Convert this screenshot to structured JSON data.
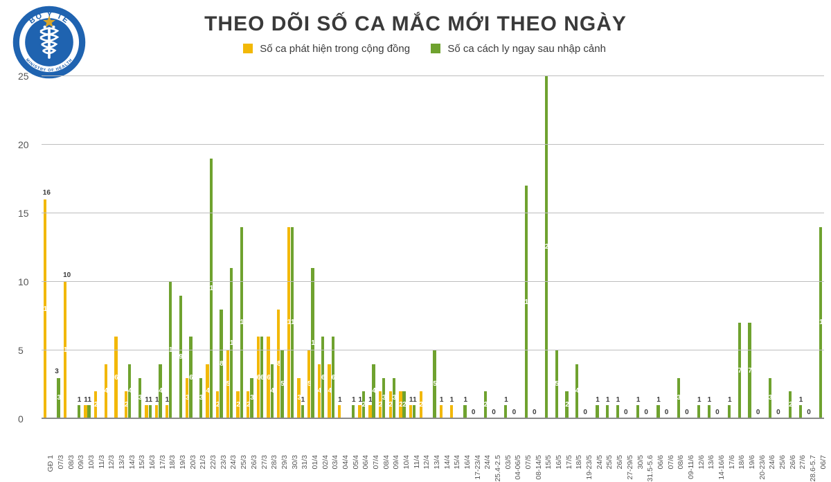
{
  "title": {
    "text": "THEO DÕI SỐ CA MẮC MỚI THEO NGÀY",
    "fontsize": 30,
    "color": "#3a3a3a"
  },
  "legend": {
    "series": [
      {
        "label": "Số ca phát hiện trong cộng đồng",
        "color": "#f2b807"
      },
      {
        "label": "Số ca cách ly ngay sau nhập cảnh",
        "color": "#6fa22f"
      }
    ]
  },
  "logo": {
    "outer_text_top": "BỘ Y TẾ",
    "outer_text_bottom": "MINISTRY OF HEALTH",
    "ring_color": "#1f63b0",
    "inner_color": "#1f63b0",
    "star_color": "#d7a52a"
  },
  "chart": {
    "type": "stacked-bar",
    "y": {
      "min": 0,
      "max": 26,
      "ticks": [
        0,
        5,
        10,
        15,
        20,
        25
      ],
      "grid_color": "#bdbdbd",
      "tick_fontsize": 14
    },
    "bar": {
      "gap_ratio": 0.35,
      "half_gap_ratio": 0.06
    },
    "colors": {
      "community": "#f2b807",
      "imported": "#6fa22f"
    },
    "label_zero_color": "#3a3a3a",
    "xlabel_fontsize": 10.5,
    "data": [
      {
        "x": "GĐ 1",
        "community": 16,
        "imported": 0,
        "top": "16"
      },
      {
        "x": "07/3",
        "community": 0,
        "imported": 3,
        "top": "3"
      },
      {
        "x": "08/3",
        "community": 10,
        "imported": 0,
        "top": "10"
      },
      {
        "x": "09/3",
        "community": 0,
        "imported": 1,
        "top": ""
      },
      {
        "x": "10/3",
        "community": 1,
        "imported": 1,
        "top": ""
      },
      {
        "x": "11/3",
        "community": 2,
        "imported": 0,
        "top": ""
      },
      {
        "x": "12/3",
        "community": 4,
        "imported": 0,
        "top": ""
      },
      {
        "x": "13/3",
        "community": 6,
        "imported": 0,
        "top": ""
      },
      {
        "x": "14/3",
        "community": 2,
        "imported": 4,
        "top": ""
      },
      {
        "x": "15/3",
        "community": 0,
        "imported": 3,
        "top": ""
      },
      {
        "x": "16/3",
        "community": 1,
        "imported": 1,
        "top": ""
      },
      {
        "x": "17/3",
        "community": 1,
        "imported": 4,
        "top": ""
      },
      {
        "x": "18/3",
        "community": 1,
        "imported": 10,
        "top": ""
      },
      {
        "x": "19/3",
        "community": 0,
        "imported": 9,
        "top": ""
      },
      {
        "x": "20/3",
        "community": 3,
        "imported": 6,
        "top": ""
      },
      {
        "x": "21/3",
        "community": 0,
        "imported": 3,
        "top": ""
      },
      {
        "x": "22/3",
        "community": 4,
        "imported": 19,
        "top": ""
      },
      {
        "x": "23/3",
        "community": 2,
        "imported": 8,
        "top": ""
      },
      {
        "x": "24/3",
        "community": 5,
        "imported": 11,
        "top": ""
      },
      {
        "x": "25/3",
        "community": 2,
        "imported": 14,
        "top": ""
      },
      {
        "x": "26/3",
        "community": 2,
        "imported": 3,
        "top": ""
      },
      {
        "x": "27/3",
        "community": 6,
        "imported": 6,
        "top": ""
      },
      {
        "x": "28/3",
        "community": 6,
        "imported": 4,
        "top": ""
      },
      {
        "x": "29/3",
        "community": 8,
        "imported": 5,
        "top": ""
      },
      {
        "x": "30/3",
        "community": 14,
        "imported": 14,
        "top": ""
      },
      {
        "x": "31/3",
        "community": 3,
        "imported": 1,
        "top": ""
      },
      {
        "x": "01/4",
        "community": 5,
        "imported": 11,
        "top": ""
      },
      {
        "x": "02/4",
        "community": 4,
        "imported": 6,
        "top": ""
      },
      {
        "x": "03/4",
        "community": 4,
        "imported": 6,
        "top": ""
      },
      {
        "x": "04/4",
        "community": 1,
        "imported": 0,
        "top": ""
      },
      {
        "x": "05/4",
        "community": 0,
        "imported": 1,
        "top": ""
      },
      {
        "x": "06/4",
        "community": 1,
        "imported": 2,
        "top": ""
      },
      {
        "x": "07/4",
        "community": 1,
        "imported": 4,
        "top": ""
      },
      {
        "x": "08/4",
        "community": 2,
        "imported": 3,
        "top": ""
      },
      {
        "x": "09/4",
        "community": 2,
        "imported": 3,
        "top": ""
      },
      {
        "x": "10/4",
        "community": 2,
        "imported": 2,
        "top": ""
      },
      {
        "x": "11/4",
        "community": 1,
        "imported": 1,
        "top": ""
      },
      {
        "x": "12/4",
        "community": 2,
        "imported": 0,
        "top": ""
      },
      {
        "x": "13/4",
        "community": 0,
        "imported": 5,
        "top": ""
      },
      {
        "x": "14/4",
        "community": 1,
        "imported": 0,
        "top": ""
      },
      {
        "x": "15/4",
        "community": 1,
        "imported": 0,
        "top": ""
      },
      {
        "x": "16/4",
        "community": 0,
        "imported": 1,
        "top": ""
      },
      {
        "x": "17-23/4",
        "community": 0,
        "imported": 0,
        "top": "0"
      },
      {
        "x": "24/4",
        "community": 0,
        "imported": 2,
        "top": ""
      },
      {
        "x": "25.4-2.5",
        "community": 0,
        "imported": 0,
        "top": "0"
      },
      {
        "x": "03/5",
        "community": 0,
        "imported": 1,
        "top": ""
      },
      {
        "x": "04-06/5",
        "community": 0,
        "imported": 0,
        "top": "0"
      },
      {
        "x": "07/5",
        "community": 0,
        "imported": 17,
        "top": ""
      },
      {
        "x": "08-14/5",
        "community": 0,
        "imported": 0,
        "top": "0"
      },
      {
        "x": "15/5",
        "community": 0,
        "imported": 25,
        "top": ""
      },
      {
        "x": "16/5",
        "community": 0,
        "imported": 5,
        "top": ""
      },
      {
        "x": "17/5",
        "community": 0,
        "imported": 2,
        "top": ""
      },
      {
        "x": "18/5",
        "community": 0,
        "imported": 4,
        "top": ""
      },
      {
        "x": "19-23/5",
        "community": 0,
        "imported": 0,
        "top": "0"
      },
      {
        "x": "24/5",
        "community": 0,
        "imported": 1,
        "top": ""
      },
      {
        "x": "25/5",
        "community": 0,
        "imported": 1,
        "top": ""
      },
      {
        "x": "26/5",
        "community": 0,
        "imported": 1,
        "top": ""
      },
      {
        "x": "27-29/5",
        "community": 0,
        "imported": 0,
        "top": "0"
      },
      {
        "x": "30/5",
        "community": 0,
        "imported": 1,
        "top": ""
      },
      {
        "x": "31.5-5.6",
        "community": 0,
        "imported": 0,
        "top": "0"
      },
      {
        "x": "06/6",
        "community": 0,
        "imported": 1,
        "top": ""
      },
      {
        "x": "07/6",
        "community": 0,
        "imported": 0,
        "top": "0"
      },
      {
        "x": "08/6",
        "community": 0,
        "imported": 3,
        "top": ""
      },
      {
        "x": "09-11/6",
        "community": 0,
        "imported": 0,
        "top": "0"
      },
      {
        "x": "12/6",
        "community": 0,
        "imported": 1,
        "top": ""
      },
      {
        "x": "13/6",
        "community": 0,
        "imported": 1,
        "top": ""
      },
      {
        "x": "14-16/6",
        "community": 0,
        "imported": 0,
        "top": "0"
      },
      {
        "x": "17/6",
        "community": 0,
        "imported": 1,
        "top": ""
      },
      {
        "x": "18/6",
        "community": 0,
        "imported": 7,
        "top": ""
      },
      {
        "x": "19/6",
        "community": 0,
        "imported": 7,
        "top": ""
      },
      {
        "x": "20-23/6",
        "community": 0,
        "imported": 0,
        "top": "0"
      },
      {
        "x": "24/6",
        "community": 0,
        "imported": 3,
        "top": ""
      },
      {
        "x": "25/6",
        "community": 0,
        "imported": 0,
        "top": "0"
      },
      {
        "x": "26/6",
        "community": 0,
        "imported": 2,
        "top": ""
      },
      {
        "x": "27/6",
        "community": 0,
        "imported": 1,
        "top": ""
      },
      {
        "x": "28.6-5.7",
        "community": 0,
        "imported": 0,
        "top": "0"
      },
      {
        "x": "06/7",
        "community": 0,
        "imported": 14,
        "top": ""
      }
    ]
  }
}
